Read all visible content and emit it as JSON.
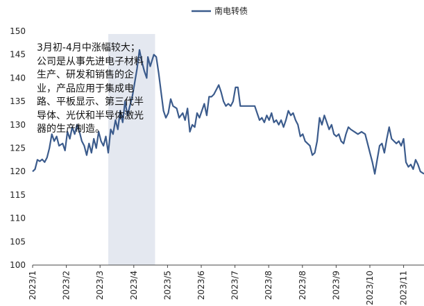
{
  "chart_data": {
    "type": "line",
    "title": "",
    "xlabel": "",
    "ylabel": "",
    "ylim": [
      100,
      150
    ],
    "yticks": [
      100,
      105,
      110,
      115,
      120,
      125,
      130,
      135,
      140,
      145,
      150
    ],
    "xlim": [
      "2023-01-01",
      "2023-11-23"
    ],
    "xtick_labels": [
      "2023/1",
      "2023/2",
      "2023/3",
      "2023/4",
      "2023/5",
      "2023/6",
      "2023/7",
      "2023/8",
      "2023/8",
      "2023/9",
      "2023/10",
      "2023/11"
    ],
    "legend": {
      "position": "top-center"
    },
    "colors": {
      "series": "#3b5b8c",
      "shade": "#e4e8f0"
    },
    "shaded_region": {
      "x0": "2023-03-05",
      "x1": "2023-04-13"
    },
    "annotation": "3月初-4月中涨幅较大；公司是从事先进电子材料生产、研发和销售的企业，产品应用于集成电路、平板显示、第三代半导体、光伏和半导体激光器的生产制造。",
    "series": [
      {
        "name": "南电转债",
        "points": [
          [
            "2023-01-01",
            120.0
          ],
          [
            "2023-01-03",
            120.5
          ],
          [
            "2023-01-05",
            122.5
          ],
          [
            "2023-01-07",
            122.2
          ],
          [
            "2023-01-09",
            122.6
          ],
          [
            "2023-01-11",
            122.0
          ],
          [
            "2023-01-13",
            123.0
          ],
          [
            "2023-01-15",
            125.0
          ],
          [
            "2023-01-17",
            128.0
          ],
          [
            "2023-01-19",
            126.5
          ],
          [
            "2023-01-21",
            127.5
          ],
          [
            "2023-01-23",
            125.5
          ],
          [
            "2023-01-26",
            126.0
          ],
          [
            "2023-01-28",
            124.5
          ],
          [
            "2023-01-30",
            128.5
          ],
          [
            "2023-02-01",
            127.0
          ],
          [
            "2023-02-03",
            129.5
          ],
          [
            "2023-02-05",
            128.0
          ],
          [
            "2023-02-07",
            130.0
          ],
          [
            "2023-02-09",
            128.5
          ],
          [
            "2023-02-11",
            126.5
          ],
          [
            "2023-02-13",
            125.5
          ],
          [
            "2023-02-15",
            123.5
          ],
          [
            "2023-02-17",
            126.0
          ],
          [
            "2023-02-19",
            124.0
          ],
          [
            "2023-02-21",
            127.0
          ],
          [
            "2023-02-23",
            125.0
          ],
          [
            "2023-02-25",
            128.5
          ],
          [
            "2023-02-27",
            126.5
          ],
          [
            "2023-03-01",
            125.5
          ],
          [
            "2023-03-03",
            127.5
          ],
          [
            "2023-03-05",
            124.0
          ],
          [
            "2023-03-07",
            129.0
          ],
          [
            "2023-03-09",
            128.0
          ],
          [
            "2023-03-11",
            131.0
          ],
          [
            "2023-03-13",
            129.0
          ],
          [
            "2023-03-15",
            133.0
          ],
          [
            "2023-03-17",
            130.5
          ],
          [
            "2023-03-19",
            135.0
          ],
          [
            "2023-03-21",
            132.0
          ],
          [
            "2023-03-23",
            134.0
          ],
          [
            "2023-03-25",
            136.0
          ],
          [
            "2023-03-27",
            139.0
          ],
          [
            "2023-03-29",
            142.0
          ],
          [
            "2023-03-31",
            146.0
          ],
          [
            "2023-04-02",
            143.5
          ],
          [
            "2023-04-04",
            141.5
          ],
          [
            "2023-04-06",
            140.0
          ],
          [
            "2023-04-07",
            144.5
          ],
          [
            "2023-04-09",
            142.5
          ],
          [
            "2023-04-12",
            145.0
          ],
          [
            "2023-04-14",
            144.5
          ],
          [
            "2023-04-16",
            141.0
          ],
          [
            "2023-04-18",
            137.0
          ],
          [
            "2023-04-20",
            133.0
          ],
          [
            "2023-04-22",
            131.5
          ],
          [
            "2023-04-24",
            132.5
          ],
          [
            "2023-04-26",
            135.5
          ],
          [
            "2023-04-28",
            134.0
          ],
          [
            "2023-05-01",
            133.5
          ],
          [
            "2023-05-03",
            131.5
          ],
          [
            "2023-05-06",
            132.5
          ],
          [
            "2023-05-08",
            131.0
          ],
          [
            "2023-05-10",
            133.5
          ],
          [
            "2023-05-12",
            128.5
          ],
          [
            "2023-05-14",
            130.0
          ],
          [
            "2023-05-16",
            129.5
          ],
          [
            "2023-05-18",
            132.5
          ],
          [
            "2023-05-20",
            131.5
          ],
          [
            "2023-05-22",
            133.0
          ],
          [
            "2023-05-24",
            134.5
          ],
          [
            "2023-05-26",
            132.0
          ],
          [
            "2023-05-28",
            136.0
          ],
          [
            "2023-05-30",
            136.0
          ],
          [
            "2023-06-01",
            136.5
          ],
          [
            "2023-06-03",
            137.5
          ],
          [
            "2023-06-05",
            138.5
          ],
          [
            "2023-06-07",
            137.0
          ],
          [
            "2023-06-09",
            135.0
          ],
          [
            "2023-06-11",
            134.0
          ],
          [
            "2023-06-13",
            134.5
          ],
          [
            "2023-06-15",
            134.0
          ],
          [
            "2023-06-17",
            135.0
          ],
          [
            "2023-06-19",
            138.0
          ],
          [
            "2023-06-21",
            138.0
          ],
          [
            "2023-06-23",
            134.0
          ],
          [
            "2023-06-26",
            134.0
          ],
          [
            "2023-06-29",
            134.0
          ],
          [
            "2023-07-02",
            134.0
          ],
          [
            "2023-07-05",
            134.0
          ],
          [
            "2023-07-07",
            132.5
          ],
          [
            "2023-07-09",
            131.0
          ],
          [
            "2023-07-11",
            131.5
          ],
          [
            "2023-07-13",
            130.5
          ],
          [
            "2023-07-15",
            132.0
          ],
          [
            "2023-07-17",
            131.0
          ],
          [
            "2023-07-19",
            132.5
          ],
          [
            "2023-07-21",
            130.5
          ],
          [
            "2023-07-23",
            131.0
          ],
          [
            "2023-07-25",
            130.0
          ],
          [
            "2023-07-27",
            131.0
          ],
          [
            "2023-07-29",
            129.5
          ],
          [
            "2023-07-31",
            131.0
          ],
          [
            "2023-08-02",
            133.0
          ],
          [
            "2023-08-04",
            132.0
          ],
          [
            "2023-08-06",
            132.5
          ],
          [
            "2023-08-08",
            131.0
          ],
          [
            "2023-08-10",
            130.0
          ],
          [
            "2023-08-12",
            127.5
          ],
          [
            "2023-08-14",
            128.0
          ],
          [
            "2023-08-16",
            126.5
          ],
          [
            "2023-08-18",
            126.0
          ],
          [
            "2023-08-20",
            125.5
          ],
          [
            "2023-08-22",
            123.5
          ],
          [
            "2023-08-24",
            124.0
          ],
          [
            "2023-08-26",
            126.5
          ],
          [
            "2023-08-28",
            131.5
          ],
          [
            "2023-08-30",
            130.0
          ],
          [
            "2023-09-01",
            132.0
          ],
          [
            "2023-09-03",
            130.5
          ],
          [
            "2023-09-05",
            129.0
          ],
          [
            "2023-09-07",
            130.0
          ],
          [
            "2023-09-09",
            128.0
          ],
          [
            "2023-09-11",
            127.5
          ],
          [
            "2023-09-13",
            128.0
          ],
          [
            "2023-09-15",
            126.5
          ],
          [
            "2023-09-17",
            126.0
          ],
          [
            "2023-09-19",
            128.0
          ],
          [
            "2023-09-21",
            129.5
          ],
          [
            "2023-09-23",
            129.0
          ],
          [
            "2023-09-26",
            128.5
          ],
          [
            "2023-09-29",
            128.0
          ],
          [
            "2023-10-02",
            128.5
          ],
          [
            "2023-10-05",
            128.0
          ],
          [
            "2023-10-07",
            126.0
          ],
          [
            "2023-10-09",
            124.0
          ],
          [
            "2023-10-11",
            122.0
          ],
          [
            "2023-10-13",
            119.5
          ],
          [
            "2023-10-15",
            122.5
          ],
          [
            "2023-10-17",
            125.5
          ],
          [
            "2023-10-19",
            126.0
          ],
          [
            "2023-10-21",
            124.0
          ],
          [
            "2023-10-23",
            127.0
          ],
          [
            "2023-10-25",
            129.5
          ],
          [
            "2023-10-27",
            127.0
          ],
          [
            "2023-10-29",
            126.5
          ],
          [
            "2023-10-31",
            126.0
          ],
          [
            "2023-11-02",
            126.5
          ],
          [
            "2023-11-04",
            125.5
          ],
          [
            "2023-11-06",
            127.0
          ],
          [
            "2023-11-08",
            122.0
          ],
          [
            "2023-11-10",
            121.0
          ],
          [
            "2023-11-12",
            121.5
          ],
          [
            "2023-11-14",
            120.5
          ],
          [
            "2023-11-16",
            122.5
          ],
          [
            "2023-11-18",
            121.5
          ],
          [
            "2023-11-20",
            120.0
          ],
          [
            "2023-11-23",
            119.5
          ]
        ]
      }
    ]
  }
}
